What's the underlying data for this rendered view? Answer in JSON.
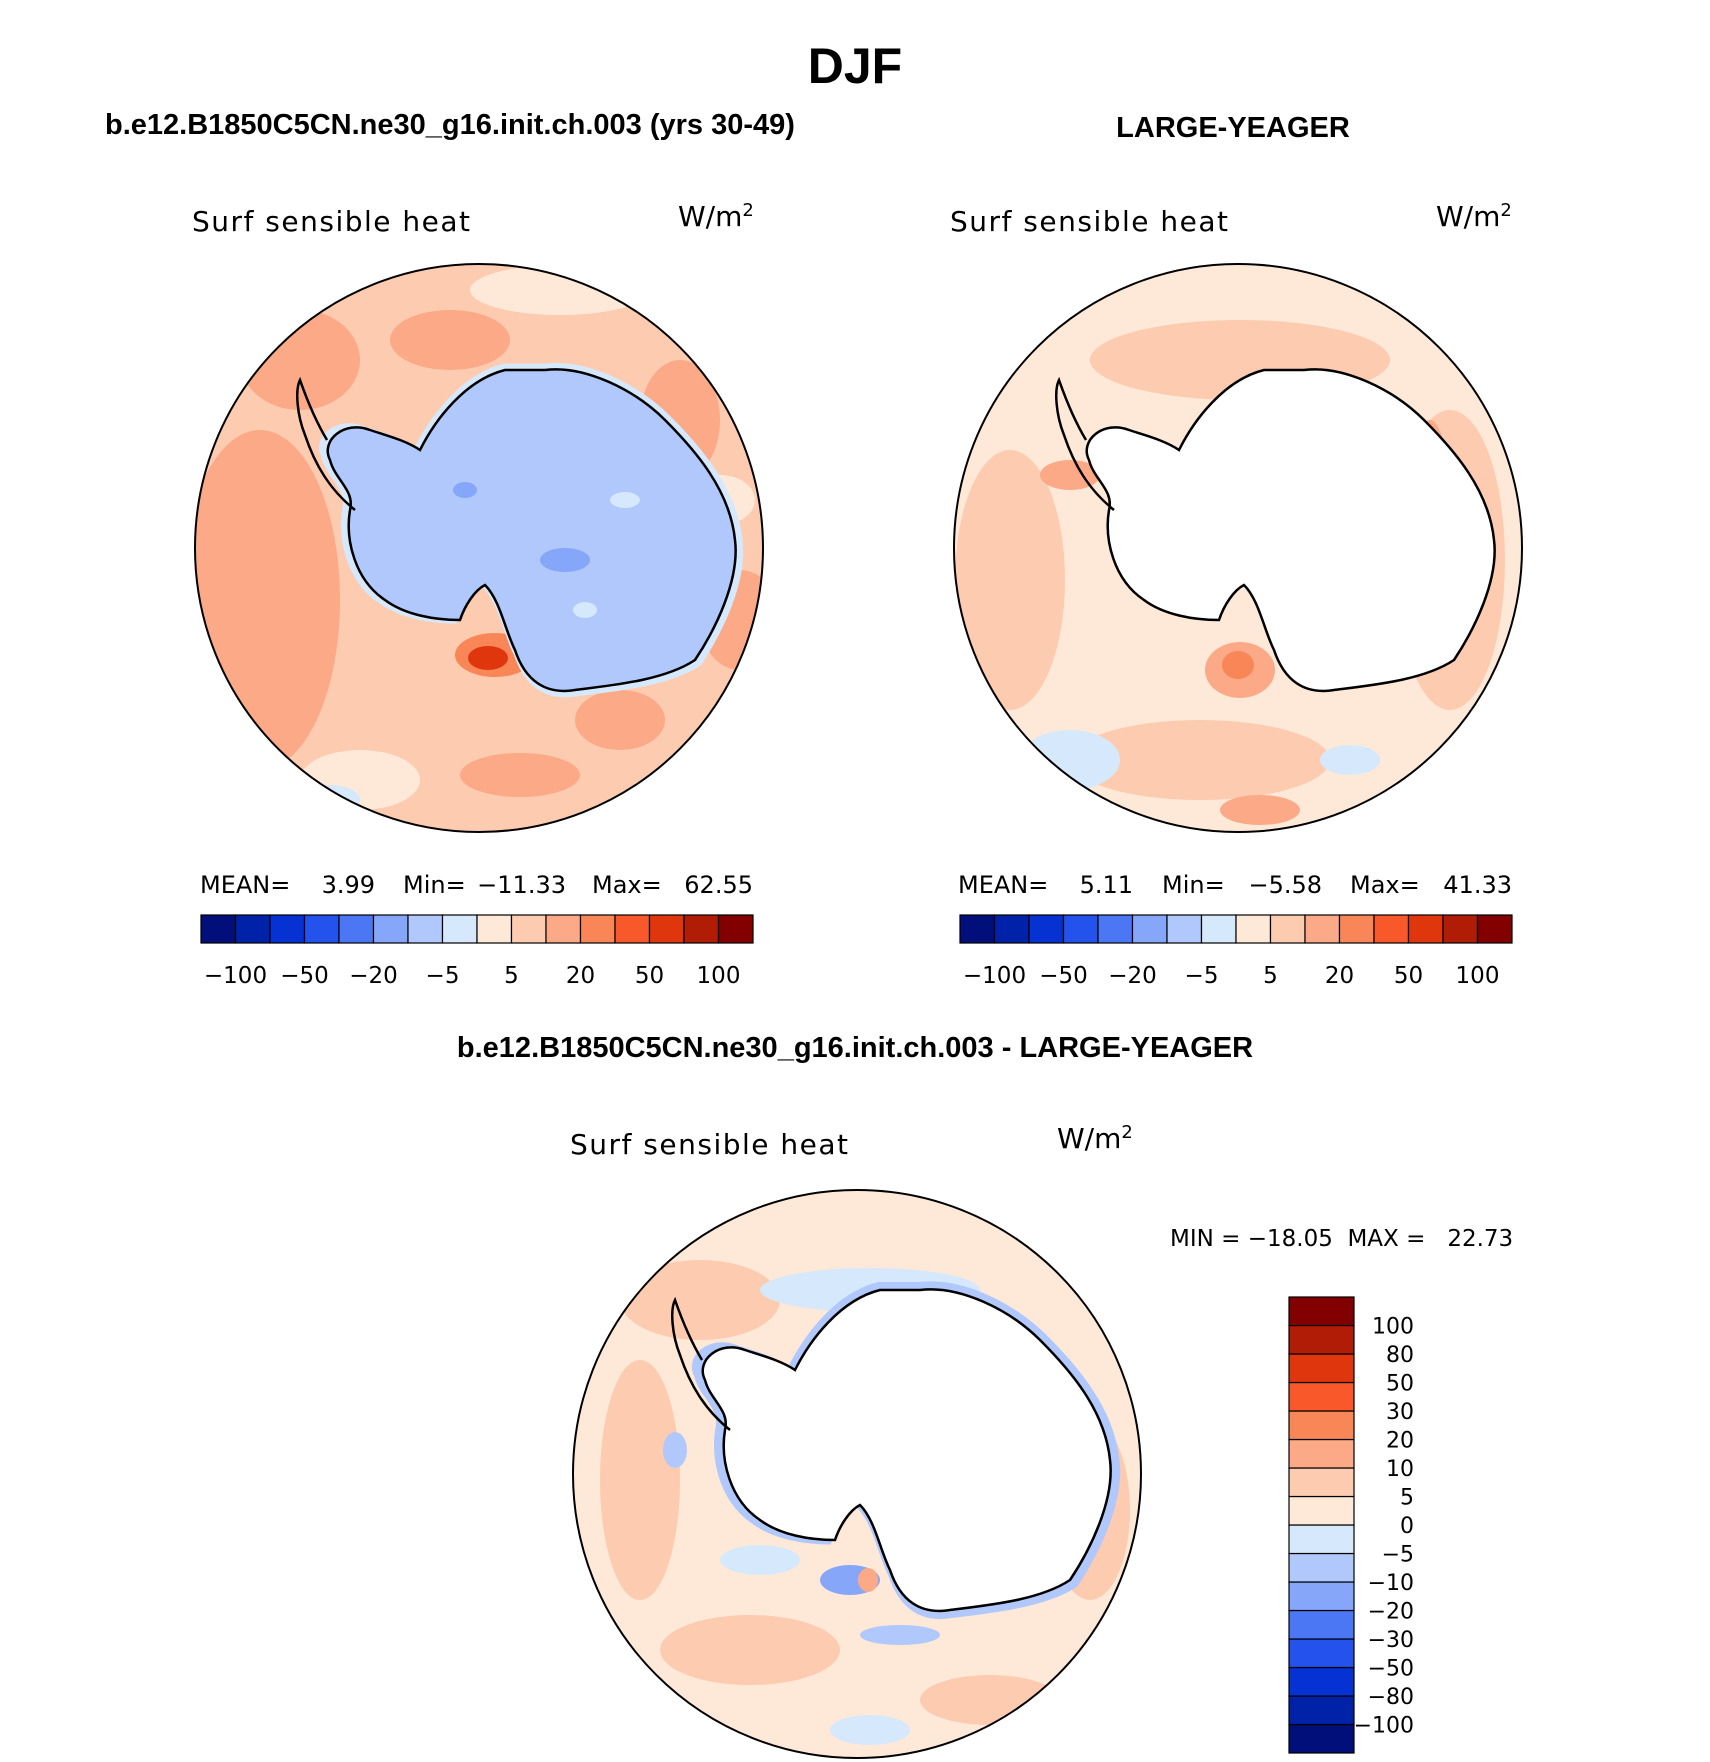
{
  "title": "DJF",
  "panels": [
    {
      "id": "model",
      "heading": "b.e12.B1850C5CN.ne30_g16.init.ch.003 (yrs 30-49)",
      "variable": "Surf sensible heat",
      "units": "W/m",
      "units_exp": "2",
      "stats": {
        "mean_label": "MEAN=",
        "mean": "3.99",
        "min_label": "Min=",
        "min": "−11.33",
        "max_label": "Max=",
        "max": "62.55"
      }
    },
    {
      "id": "obs",
      "heading": "LARGE-YEAGER",
      "variable": "Surf sensible heat",
      "units": "W/m",
      "units_exp": "2",
      "stats": {
        "mean_label": "MEAN=",
        "mean": "5.11",
        "min_label": "Min=",
        "min": "−5.58",
        "max_label": "Max=",
        "max": "41.33"
      }
    }
  ],
  "hbar": {
    "colors": [
      "#000f7a",
      "#0022a8",
      "#0632d4",
      "#2452ec",
      "#4b77f5",
      "#86a6fa",
      "#b0c8fb",
      "#d6e8fb",
      "#fee9d8",
      "#fdcbb0",
      "#fba987",
      "#f88657",
      "#f8582a",
      "#e0360e",
      "#b01c06",
      "#820000"
    ],
    "labels": [
      "−100",
      "−50",
      "−20",
      "−5",
      "5",
      "20",
      "50",
      "100"
    ]
  },
  "diff": {
    "heading": "b.e12.B1850C5CN.ne30_g16.init.ch.003 - LARGE-YEAGER",
    "variable": "Surf sensible heat",
    "units": "W/m",
    "units_exp": "2",
    "minmax": "MIN = −18.05  MAX =   22.73",
    "vbar_colors": [
      "#000f7a",
      "#0022a8",
      "#0632d4",
      "#2452ec",
      "#4b77f5",
      "#86a6fa",
      "#b0c8fb",
      "#d6e8fb",
      "#fee9d8",
      "#fdcbb0",
      "#fba987",
      "#f88657",
      "#f8582a",
      "#e0360e",
      "#b01c06",
      "#820000"
    ],
    "vbar_labels": [
      "−100",
      "−80",
      "−50",
      "−30",
      "−20",
      "−10",
      "−5",
      "0",
      "5",
      "10",
      "20",
      "30",
      "50",
      "80",
      "100"
    ]
  }
}
